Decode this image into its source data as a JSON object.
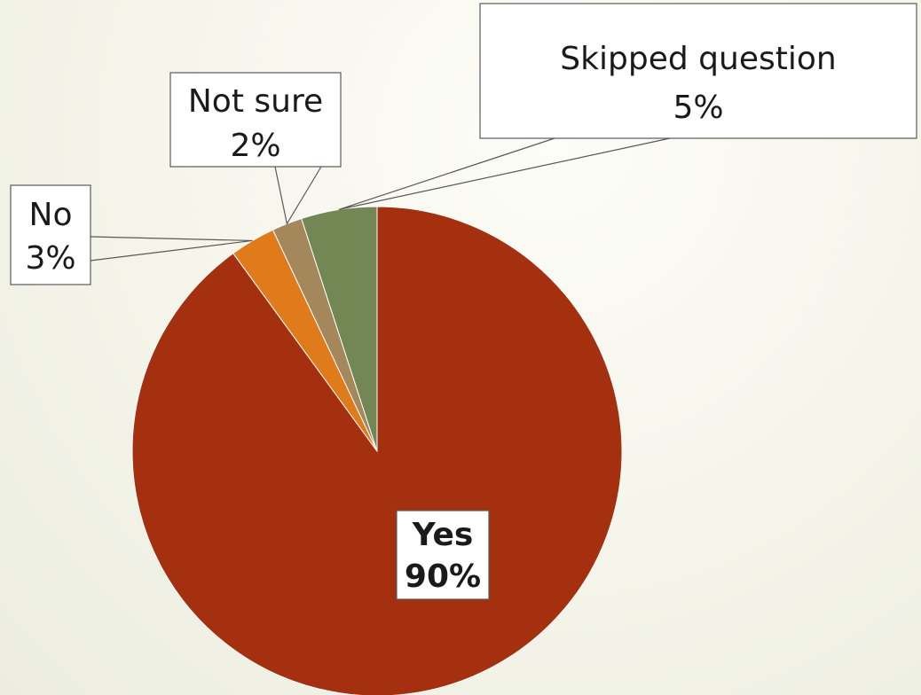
{
  "chart_data": {
    "type": "pie",
    "start_angle_deg": 0,
    "direction": "clockwise",
    "slices": [
      {
        "name": "Yes",
        "value": 90,
        "label": "90%",
        "color": "#a5300f"
      },
      {
        "name": "No",
        "value": 3,
        "label": "3%",
        "color": "#e07b1c"
      },
      {
        "name": "Not sure",
        "value": 2,
        "label": "2%",
        "color": "#a4875b"
      },
      {
        "name": "Skipped question",
        "value": 5,
        "label": "5%",
        "color": "#738754"
      }
    ],
    "legend": "none"
  }
}
